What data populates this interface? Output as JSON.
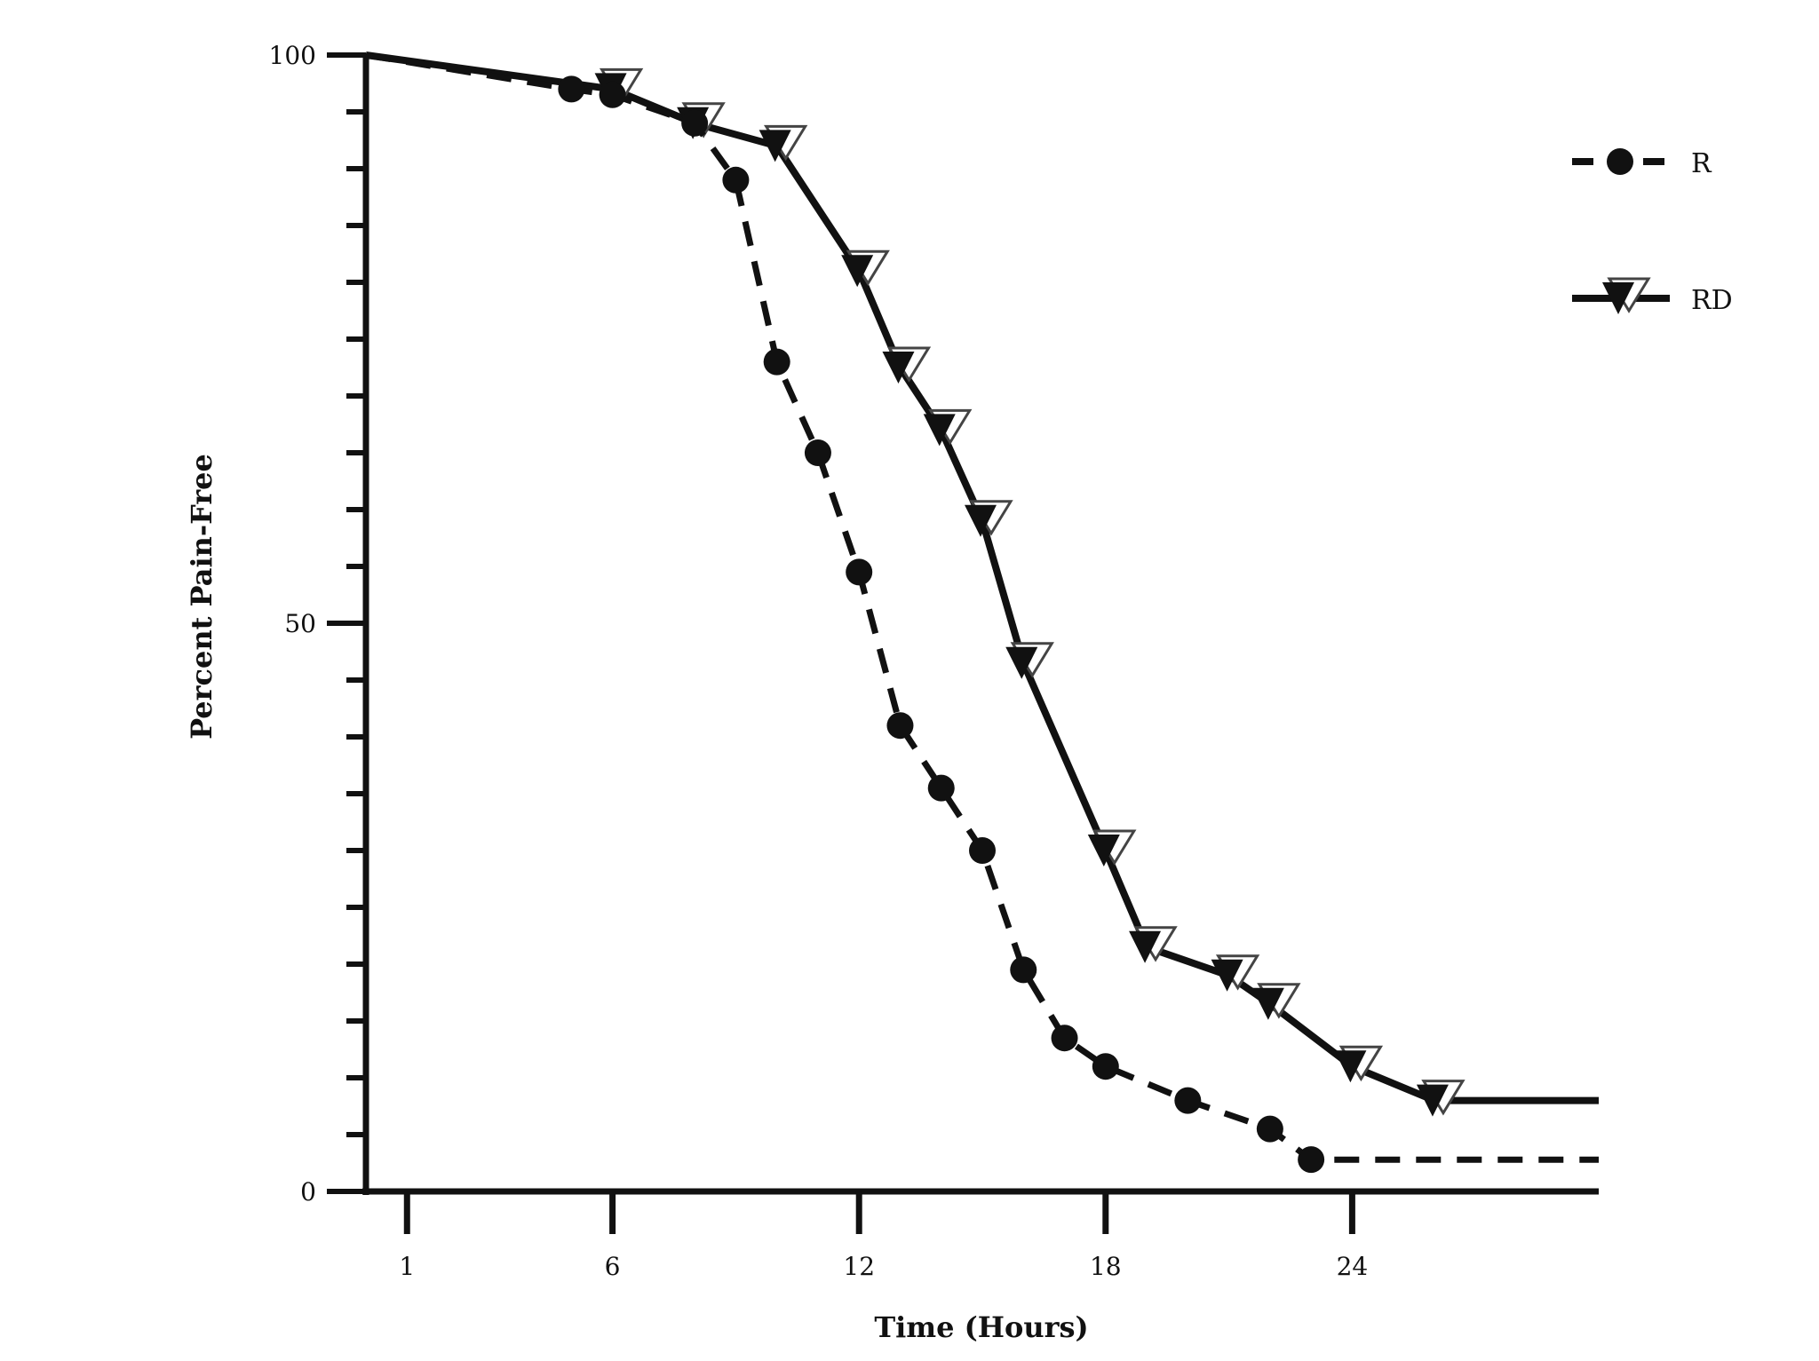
{
  "chart_data": {
    "type": "line",
    "xlabel": "Time (Hours)",
    "ylabel": "Percent Pain-Free",
    "xlim": [
      0,
      30
    ],
    "ylim": [
      0,
      100
    ],
    "x_ticks": [
      1,
      6,
      12,
      18,
      24
    ],
    "y_ticks": [
      0,
      50,
      100
    ],
    "y_minor_step": 5,
    "legend_position": "top-right",
    "series": [
      {
        "name": "R",
        "style": "dashed",
        "marker": "circle",
        "color": "#111111",
        "line_x_start": 0,
        "line_x_end": 30,
        "x": [
          5,
          6,
          8,
          9,
          10,
          11,
          12,
          13,
          14,
          15,
          16,
          17,
          18,
          20,
          22,
          23
        ],
        "y": [
          97,
          96.5,
          94,
          89,
          73,
          65,
          54.5,
          41,
          35.5,
          30,
          19.5,
          13.5,
          11,
          8,
          5.5,
          2.8
        ]
      },
      {
        "name": "RD",
        "style": "solid",
        "marker": "triangle-down",
        "color": "#111111",
        "line_x_start": 0,
        "line_x_end": 30,
        "x": [
          6,
          8,
          10,
          12,
          13,
          14,
          15,
          16,
          18,
          19,
          21,
          22,
          24,
          26
        ],
        "y": [
          97,
          94,
          92,
          81,
          72.5,
          67,
          59,
          46.5,
          30,
          21.5,
          19,
          16.5,
          11,
          8
        ]
      }
    ]
  }
}
